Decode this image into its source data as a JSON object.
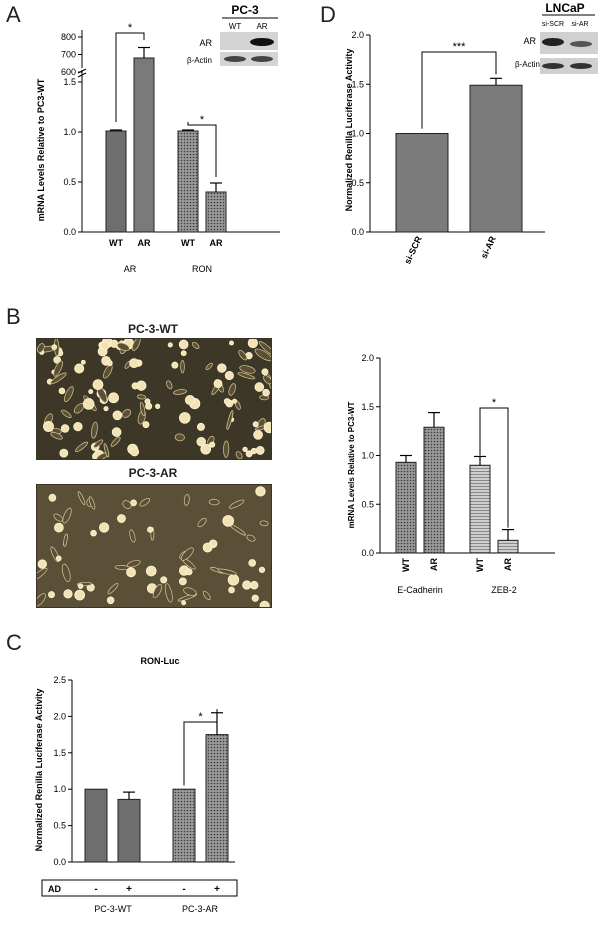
{
  "panels": {
    "a": "A",
    "b": "B",
    "c": "C",
    "d": "D"
  },
  "colors": {
    "wt_bar": "#6e6e6e",
    "ar_bar": "#7a7a7a",
    "light_bar": "#b8b8b8",
    "axis": "#000000"
  },
  "blot_a": {
    "title": "PC-3",
    "lanes": [
      "WT",
      "AR"
    ],
    "rows": [
      "AR",
      "β-Actin"
    ]
  },
  "blot_d": {
    "title": "LNCaP",
    "lanes": [
      "si-SCR",
      "si-AR"
    ],
    "rows": [
      "AR",
      "β-Actin"
    ]
  },
  "micrographs": {
    "top_title": "PC-3-WT",
    "bottom_title": "PC-3-AR"
  },
  "chart_data": [
    {
      "id": "A",
      "type": "bar",
      "title": "",
      "ylabel": "mRNA Levels Relative to PC3-WT",
      "ylim_lower": [
        0,
        1.5
      ],
      "ylim_upper": [
        600,
        800
      ],
      "yticks_lower": [
        "0.0",
        "0.5",
        "1.0",
        "1.5"
      ],
      "yticks_upper": [
        "600",
        "700",
        "800"
      ],
      "groups": [
        "AR",
        "RON"
      ],
      "categories": [
        "WT",
        "AR",
        "WT",
        "AR"
      ],
      "values": [
        1.01,
        680,
        1.01,
        0.4
      ],
      "errors": [
        0.01,
        60,
        0.01,
        0.09
      ],
      "significance": [
        "*",
        "*"
      ]
    },
    {
      "id": "D",
      "type": "bar",
      "title": "",
      "ylabel": "Normalized Renilla Luciferase Activity",
      "ylim": [
        0,
        2.0
      ],
      "yticks": [
        "0.0",
        "0.5",
        "1.0",
        "1.5",
        "2.0"
      ],
      "categories": [
        "si-SCR",
        "si-AR"
      ],
      "values": [
        1.0,
        1.49
      ],
      "errors": [
        0,
        0.07
      ],
      "significance": [
        "***"
      ]
    },
    {
      "id": "B",
      "type": "bar",
      "title": "",
      "ylabel": "mRNA Levels Relative to PC3-WT",
      "ylim": [
        0,
        2.0
      ],
      "yticks": [
        "0.0",
        "0.5",
        "1.0",
        "1.5",
        "2.0"
      ],
      "groups": [
        "E-Cadherin",
        "ZEB-2"
      ],
      "categories": [
        "WT",
        "AR",
        "WT",
        "AR"
      ],
      "values": [
        0.93,
        1.29,
        0.9,
        0.13
      ],
      "errors": [
        0.07,
        0.15,
        0.09,
        0.11
      ],
      "significance": [
        "*"
      ]
    },
    {
      "id": "C",
      "type": "bar",
      "title": "RON-Luc",
      "ylabel": "Normalized Renilla Luciferase Activity",
      "ylim": [
        0,
        2.5
      ],
      "yticks": [
        "0.0",
        "0.5",
        "1.0",
        "1.5",
        "2.0",
        "2.5"
      ],
      "groups": [
        "PC-3-WT",
        "PC-3-AR"
      ],
      "treatment_label": "AD",
      "treatment": [
        "-",
        "+",
        "-",
        "+"
      ],
      "values": [
        1.0,
        0.86,
        1.0,
        1.75
      ],
      "errors": [
        0,
        0.1,
        0,
        0.3
      ],
      "significance": [
        "*"
      ]
    }
  ]
}
